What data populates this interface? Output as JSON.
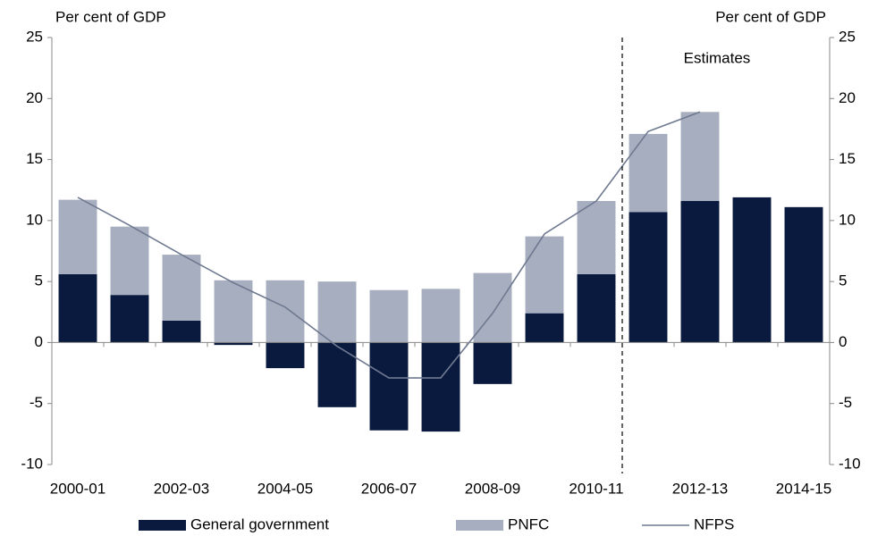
{
  "chart_data": {
    "type": "stacked-bar-line",
    "y_label_left": "Per cent of GDP",
    "y_label_right": "Per cent of GDP",
    "annotation": "Estimates",
    "categories": [
      "2000-01",
      null,
      "2002-03",
      null,
      "2004-05",
      null,
      "2006-07",
      null,
      "2008-09",
      null,
      "2010-11",
      null,
      "2012-13",
      null,
      "2014-15"
    ],
    "series": [
      {
        "name": "General government",
        "kind": "bar",
        "color": "#0a1a3f",
        "values": [
          5.6,
          3.9,
          1.8,
          -0.2,
          -2.1,
          -5.3,
          -7.2,
          -7.3,
          -3.4,
          2.4,
          5.6,
          10.7,
          11.6,
          11.9,
          11.1
        ]
      },
      {
        "name": "PNFC",
        "kind": "bar",
        "color": "#a6aebf",
        "values": [
          6.1,
          5.6,
          5.4,
          5.1,
          5.1,
          5.0,
          4.3,
          4.4,
          5.7,
          6.3,
          6.0,
          6.4,
          7.3,
          null,
          null
        ]
      },
      {
        "name": "NFPS",
        "kind": "line",
        "color": "#6f7a91",
        "values": [
          11.9,
          9.6,
          7.2,
          4.9,
          2.9,
          -0.3,
          -2.9,
          -2.9,
          2.4,
          8.9,
          11.6,
          17.3,
          18.9,
          null,
          null
        ]
      }
    ],
    "ylim": [
      -10,
      25
    ],
    "yticks": [
      -10,
      -5,
      0,
      5,
      10,
      15,
      20,
      25
    ],
    "y2lim": [
      -10,
      25
    ],
    "y2ticks": [
      -10,
      -5,
      0,
      5,
      10,
      15,
      20,
      25
    ],
    "estimates_from": 10.5,
    "legend": "bottom"
  }
}
